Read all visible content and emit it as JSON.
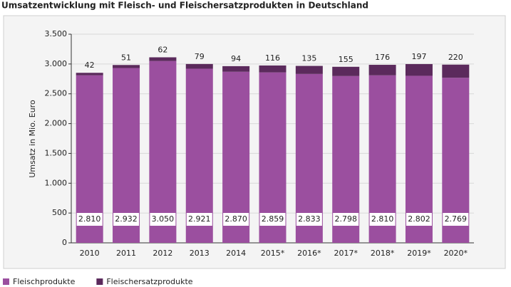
{
  "chart_data": {
    "type": "stacked_bar",
    "title": "Umsatzentwicklung mit Fleisch- und Fleischersatzprodukten in Deutschland",
    "y_label": "Umsatz in Mio. Euro",
    "categories": [
      "2010",
      "2011",
      "2012",
      "2013",
      "2014",
      "2015*",
      "2016*",
      "2017*",
      "2018*",
      "2019*",
      "2020*"
    ],
    "series": [
      {
        "name": "Fleischprodukte",
        "color": "#9b4f9f",
        "values": [
          2810,
          2932,
          3050,
          2921,
          2870,
          2859,
          2833,
          2798,
          2810,
          2802,
          2769
        ],
        "value_labels": [
          "2.810",
          "2.932",
          "3.050",
          "2.921",
          "2.870",
          "2.859",
          "2.833",
          "2.798",
          "2.810",
          "2.802",
          "2.769"
        ]
      },
      {
        "name": "Fleischersatzprodukte",
        "color": "#5b2a5c",
        "values": [
          42,
          51,
          62,
          79,
          94,
          116,
          135,
          155,
          176,
          197,
          220
        ]
      }
    ],
    "ylim": [
      0,
      3500
    ],
    "yticks": [
      0,
      500,
      {
        "value": 1000,
        "label": "1.000"
      },
      {
        "value": 1500,
        "label": "1.500"
      },
      {
        "value": 2000,
        "label": "2.000"
      },
      {
        "value": 2500,
        "label": "2.500"
      },
      {
        "value": 3000,
        "label": "3.000"
      },
      {
        "value": 3500,
        "label": "3.500"
      }
    ],
    "grid": true
  }
}
